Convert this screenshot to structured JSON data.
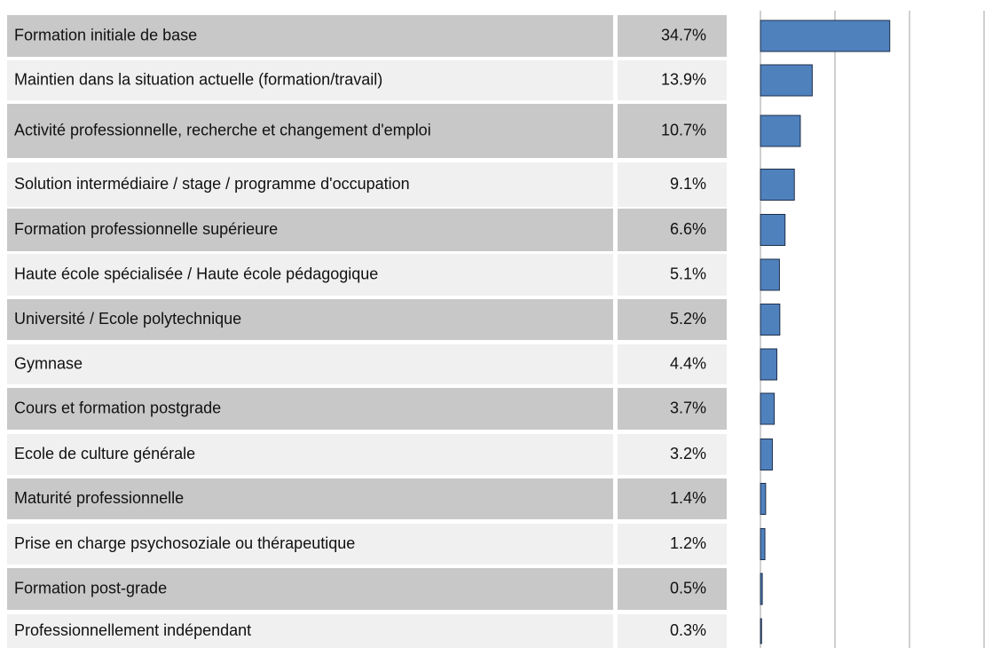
{
  "chart_data": {
    "type": "bar",
    "orientation": "horizontal",
    "categories": [
      "Formation initiale de base",
      "Maintien dans la situation actuelle (formation/travail)",
      "Activité professionnelle, recherche et changement d'emploi",
      "Solution intermédiaire / stage / programme d'occupation",
      "Formation professionnelle supérieure",
      "Haute école spécialisée / Haute école pédagogique",
      "Université / Ecole polytechnique",
      "Gymnase",
      "Cours et formation postgrade",
      "Ecole de culture générale",
      "Maturité professionnelle",
      "Prise en charge psychosoziale ou thérapeutique",
      "Formation post-grade",
      "Professionnellement indépendant"
    ],
    "values": [
      34.7,
      13.9,
      10.7,
      9.1,
      6.6,
      5.1,
      5.2,
      4.4,
      3.7,
      3.2,
      1.4,
      1.2,
      0.5,
      0.3
    ],
    "value_labels": [
      "34.7%",
      "13.9%",
      "10.7%",
      "9.1%",
      "6.6%",
      "5.1%",
      "5.2%",
      "4.4%",
      "3.7%",
      "3.2%",
      "1.4%",
      "1.2%",
      "0.5%",
      "0.3%"
    ],
    "color": "#4f81bd",
    "xlim": [
      0,
      60
    ],
    "xticks": [
      0,
      20,
      40,
      60
    ],
    "grid": true
  }
}
